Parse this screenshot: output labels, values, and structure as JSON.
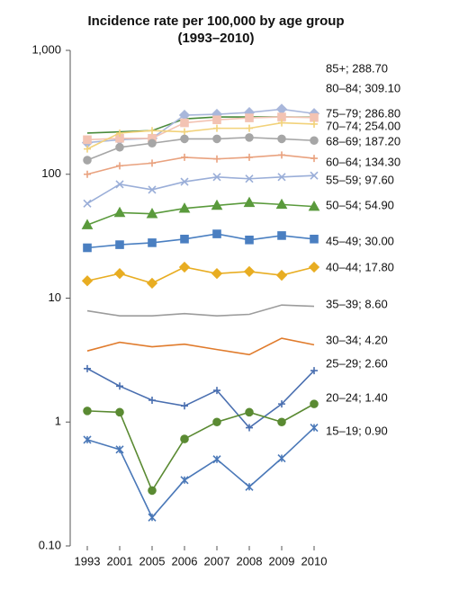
{
  "chart_data": {
    "type": "line",
    "title": "Incidence rate per 100,000 by age group",
    "subtitle": "(1993–2010)",
    "log_scale": true,
    "categories": [
      "1993",
      "2001",
      "2005",
      "2006",
      "2007",
      "2008",
      "2009",
      "2010"
    ],
    "ylim": [
      0.1,
      1000
    ],
    "yticks": [
      {
        "value": 1000,
        "label": "1,000"
      },
      100,
      10,
      1,
      {
        "value": 0.1,
        "label": "0.10"
      }
    ],
    "series": [
      {
        "name": "85+; 288.70",
        "color": "#4a8b3b",
        "marker": "none",
        "values": [
          215,
          220,
          225,
          280,
          290,
          290,
          290,
          288.7
        ]
      },
      {
        "name": "80–84; 309.10",
        "color": "#a9b7db",
        "marker": "diamond",
        "values": [
          180,
          190,
          195,
          300,
          305,
          315,
          335,
          309.1
        ]
      },
      {
        "name": "75–79; 286.80",
        "color": "#f3c3b3",
        "marker": "square",
        "values": [
          190,
          195,
          195,
          260,
          275,
          285,
          290,
          286.8
        ]
      },
      {
        "name": "70–74; 254.00",
        "color": "#f2d27a",
        "marker": "plus",
        "values": [
          160,
          215,
          225,
          220,
          235,
          235,
          260,
          254
        ]
      },
      {
        "name": "68–69; 187.20",
        "color": "#a6a6a6",
        "marker": "circle",
        "values": [
          130,
          165,
          178,
          193,
          193,
          198,
          193,
          187.2
        ]
      },
      {
        "name": "60–64; 134.30",
        "color": "#e9a27f",
        "marker": "plus",
        "values": [
          100,
          117,
          123,
          137,
          133,
          137,
          143,
          134.3
        ]
      },
      {
        "name": "55–59; 97.60",
        "color": "#9aaed8",
        "marker": "x",
        "values": [
          58,
          83,
          75,
          87,
          95,
          92,
          95,
          97.6
        ]
      },
      {
        "name": "50–54; 54.90",
        "color": "#5a9a3c",
        "marker": "triangle",
        "values": [
          39,
          49,
          48,
          53,
          56,
          59,
          57,
          54.9
        ]
      },
      {
        "name": "45–49; 30.00",
        "color": "#4a7fc1",
        "marker": "square",
        "values": [
          25.5,
          27,
          28,
          30,
          33,
          29.5,
          32,
          30
        ]
      },
      {
        "name": "40–44; 17.80",
        "color": "#e8ad22",
        "marker": "diamond",
        "values": [
          13.8,
          15.8,
          13.2,
          17.8,
          15.8,
          16.4,
          15.3,
          17.8
        ]
      },
      {
        "name": "35–39; 8.60",
        "color": "#9c9c9c",
        "marker": "none",
        "values": [
          7.9,
          7.2,
          7.2,
          7.5,
          7.2,
          7.4,
          8.8,
          8.6
        ]
      },
      {
        "name": "30–34; 4.20",
        "color": "#e07b2c",
        "marker": "none",
        "values": [
          3.75,
          4.4,
          4.05,
          4.25,
          3.85,
          3.5,
          4.75,
          4.2
        ]
      },
      {
        "name": "25–29; 2.60",
        "color": "#4a6fb0",
        "marker": "plus",
        "values": [
          2.7,
          1.95,
          1.5,
          1.35,
          1.8,
          0.9,
          1.4,
          2.6
        ]
      },
      {
        "name": "20–24; 1.40",
        "color": "#5a8a32",
        "marker": "circle",
        "values": [
          1.23,
          1.2,
          0.28,
          0.73,
          1.0,
          1.2,
          1.0,
          1.4
        ]
      },
      {
        "name": "15–19; 0.90",
        "color": "#4a78b8",
        "marker": "asterisk",
        "values": [
          0.72,
          0.6,
          0.17,
          0.34,
          0.5,
          0.3,
          0.51,
          0.9
        ]
      }
    ]
  }
}
